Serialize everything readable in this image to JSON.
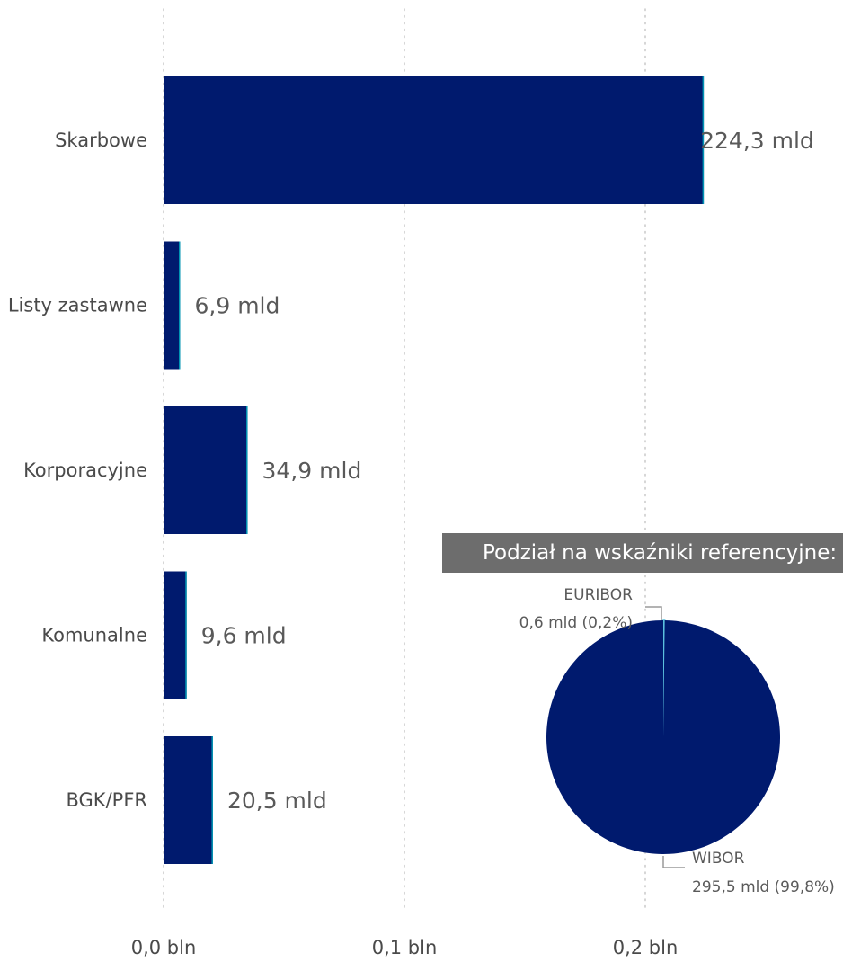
{
  "chart_data": [
    {
      "type": "bar",
      "orientation": "horizontal",
      "categories": [
        "Skarbowe",
        "Listy zastawne",
        "Korporacyjne",
        "Komunalne",
        "BGK/PFR"
      ],
      "values": [
        224.3,
        6.9,
        34.9,
        9.6,
        20.5
      ],
      "value_unit": "mld",
      "data_labels": [
        "224,3 mld",
        "6,9 mld",
        "34,9 mld",
        "9,6 mld",
        "20,5 mld"
      ],
      "x_ticks": [
        0,
        100,
        200
      ],
      "x_tick_labels": [
        "0,0 bln",
        "0,1 bln",
        "0,2 bln"
      ],
      "xlim": [
        0,
        200
      ],
      "grid": "vertical dotted",
      "color": "#001A6E",
      "accent_color": "#00B3C4"
    },
    {
      "type": "pie",
      "title": "Podział na wskaźniki referencyjne:",
      "slices": [
        {
          "name": "EURIBOR",
          "value": 0.6,
          "percent": 0.2,
          "label": "0,6 mld (0,2%)",
          "color": "#5BC0DE"
        },
        {
          "name": "WIBOR",
          "value": 295.5,
          "percent": 99.8,
          "label": "295,5 mld (99,8%)",
          "color": "#001A6E"
        }
      ]
    }
  ]
}
